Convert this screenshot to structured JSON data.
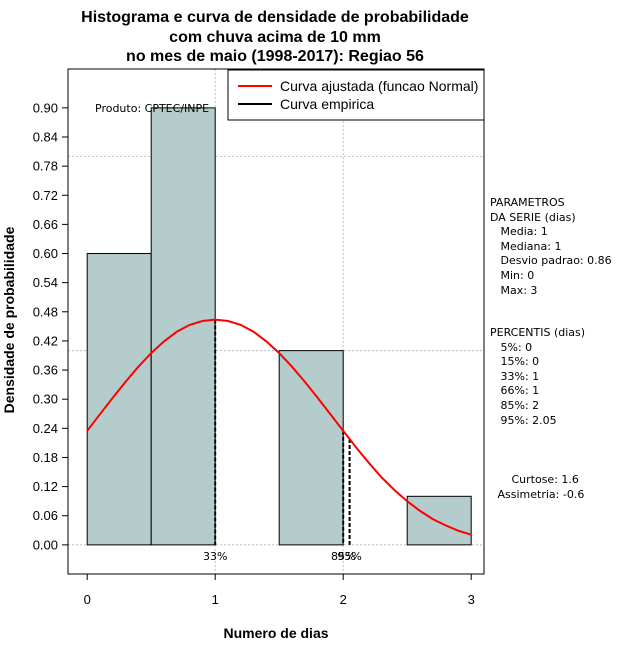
{
  "chart_data": {
    "type": "bar",
    "title": [
      "Histograma e curva de densidade de probabilidade",
      "com chuva acima de 10 mm",
      "no mes de maio (1998-2017): Regiao 56"
    ],
    "xlabel": "Numero de dias",
    "ylabel": "Densidade de probabilidade",
    "xlim": [
      -0.15,
      3.1
    ],
    "ylim": [
      -0.06,
      0.98
    ],
    "x_ticks": [
      "0",
      "1",
      "2",
      "3"
    ],
    "y_ticks": [
      "0.00",
      "0.06",
      "0.12",
      "0.18",
      "0.24",
      "0.30",
      "0.36",
      "0.42",
      "0.48",
      "0.54",
      "0.60",
      "0.66",
      "0.72",
      "0.78",
      "0.84",
      "0.90"
    ],
    "grid_x": [
      1,
      2
    ],
    "grid_y": [
      0,
      0.4,
      0.8
    ],
    "bars": [
      {
        "x0": 0,
        "x1": 0.5,
        "value": 0.6
      },
      {
        "x0": 0.5,
        "x1": 1.0,
        "value": 0.9
      },
      {
        "x0": 1.5,
        "x1": 2.0,
        "value": 0.4
      },
      {
        "x0": 2.5,
        "x1": 3.0,
        "value": 0.1
      }
    ],
    "series": [
      {
        "name": "Curva ajustada (funcao Normal)",
        "color": "#ff0000",
        "x": [
          0,
          0.1,
          0.2,
          0.3,
          0.4,
          0.5,
          0.6,
          0.7,
          0.8,
          0.9,
          1.0,
          1.1,
          1.2,
          1.3,
          1.4,
          1.5,
          1.6,
          1.7,
          1.8,
          1.9,
          2.0,
          2.1,
          2.2,
          2.3,
          2.4,
          2.5,
          2.6,
          2.7,
          2.8,
          2.9,
          3.0
        ],
        "y": [
          0.235,
          0.269,
          0.303,
          0.336,
          0.367,
          0.395,
          0.419,
          0.439,
          0.453,
          0.461,
          0.464,
          0.461,
          0.453,
          0.439,
          0.419,
          0.395,
          0.367,
          0.336,
          0.303,
          0.269,
          0.235,
          0.201,
          0.169,
          0.139,
          0.113,
          0.09,
          0.07,
          0.053,
          0.04,
          0.029,
          0.021
        ]
      },
      {
        "name": "Curva empirica",
        "color": "#000000"
      }
    ],
    "percentile_lines": [
      {
        "x": 1.0,
        "label": "33%"
      },
      {
        "x": 2.0,
        "label": "85%"
      },
      {
        "x": 2.05,
        "label": "95%"
      }
    ],
    "annotation": "Produto: CPTEC/INPE",
    "legend_position": "top-right"
  },
  "side_panel": {
    "parametros": "PARAMETROS\nDA SERIE (dias)\n   Media: 1\n   Mediana: 1\n   Desvio padrao: 0.86\n   Min: 0\n   Max: 3",
    "percentis": "PERCENTIS (dias)\n   5%: 0\n   15%: 0\n   33%: 1\n   66%: 1\n   85%: 2\n   95%: 2.05",
    "momentos": "     Curtose: 1.6\n Assimetria: -0.6"
  },
  "colors": {
    "bar_fill": "#b4cccc",
    "grid": "#bebebe"
  }
}
